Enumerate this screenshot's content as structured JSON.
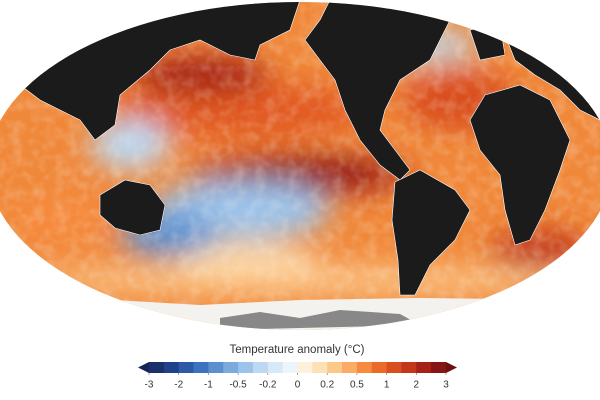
{
  "legend": {
    "title": "Temperature anomaly (°C)",
    "ticks": [
      -3,
      -2,
      -1,
      -0.5,
      -0.2,
      0,
      0.2,
      0.5,
      1,
      2,
      3
    ],
    "colors": [
      "#1a2f6b",
      "#21408c",
      "#2c5aa8",
      "#3b73c0",
      "#5a8fd0",
      "#7aaade",
      "#9cc3ea",
      "#bcd8f2",
      "#d7e8f7",
      "#edf4fb",
      "#fdf1dc",
      "#fde0b5",
      "#fcc88a",
      "#fbab62",
      "#f68a3e",
      "#ea6a2a",
      "#d94e1f",
      "#c23619",
      "#a52316",
      "#861515"
    ],
    "under_color": "#142558",
    "over_color": "#6e0f12"
  }
}
